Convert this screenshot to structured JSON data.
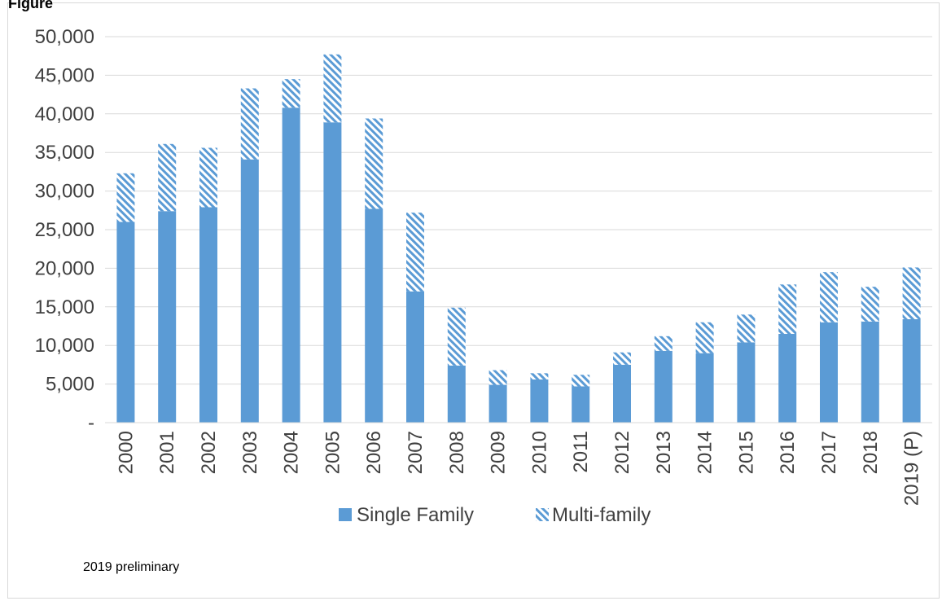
{
  "chart_title": "Figure",
  "note": "2019 preliminary",
  "colors": {
    "single": "#5b9bd5",
    "multi": "#5b9bd5",
    "grid": "#d9d9d9",
    "text": "#404040"
  },
  "chart_data": {
    "type": "bar",
    "stacked": true,
    "title": "",
    "xlabel": "",
    "ylabel": "",
    "ylim": [
      0,
      50000
    ],
    "yticks": [
      0,
      5000,
      10000,
      15000,
      20000,
      25000,
      30000,
      35000,
      40000,
      45000,
      50000
    ],
    "ytick_labels": [
      "-",
      "5,000",
      "10,000",
      "15,000",
      "20,000",
      "25,000",
      "30,000",
      "35,000",
      "40,000",
      "45,000",
      "50,000"
    ],
    "grid": true,
    "legend_position": "bottom",
    "categories": [
      "2000",
      "2001",
      "2002",
      "2003",
      "2004",
      "2005",
      "2006",
      "2007",
      "2008",
      "2009",
      "2010",
      "2011",
      "2012",
      "2013",
      "2014",
      "2015",
      "2016",
      "2017",
      "2018",
      "2019 (P)"
    ],
    "series": [
      {
        "name": "Single Family",
        "pattern": "solid",
        "values": [
          26000,
          27400,
          27900,
          34100,
          40800,
          38900,
          27700,
          17000,
          7400,
          4900,
          5600,
          4700,
          7500,
          9300,
          9000,
          10400,
          11500,
          13000,
          13100,
          13400
        ]
      },
      {
        "name": "Multi-family",
        "pattern": "hatched",
        "values": [
          6300,
          8700,
          7700,
          9200,
          3700,
          8800,
          11700,
          10200,
          7500,
          1900,
          800,
          1500,
          1600,
          1900,
          4000,
          3600,
          6400,
          6500,
          4500,
          6700
        ]
      }
    ]
  }
}
